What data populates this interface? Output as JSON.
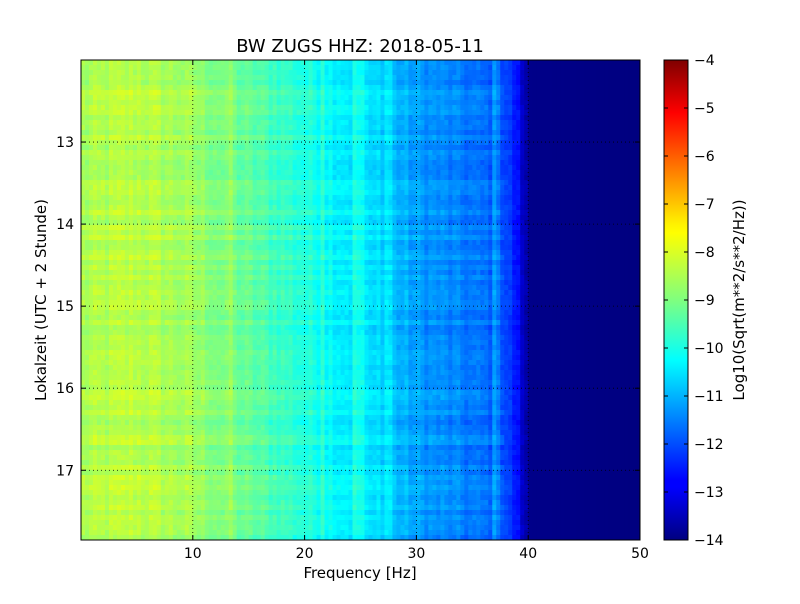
{
  "chart_data": {
    "type": "heatmap",
    "title": "BW ZUGS HHZ: 2018-05-11",
    "xlabel": "Frequency [Hz]",
    "ylabel": "Lokalzeit (UTC + 2 Stunde)",
    "xlim": [
      0,
      50
    ],
    "ylim": [
      12.0,
      17.85
    ],
    "y_inverted": true,
    "x_ticks": [
      10,
      20,
      30,
      40,
      50
    ],
    "y_ticks": [
      13,
      14,
      15,
      16,
      17
    ],
    "grid": true,
    "grid_style": "dotted",
    "colormap": "jet",
    "colorbar": {
      "label": "Log10(Sqrt(m**2/s**2/Hz))",
      "min": -14,
      "max": -4,
      "ticks": [
        -4,
        -5,
        -6,
        -7,
        -8,
        -9,
        -10,
        -11,
        -12,
        -13,
        -14
      ]
    },
    "spectrum_profile": {
      "frequency_hz": [
        0,
        5,
        10,
        15,
        20,
        25,
        30,
        35,
        37.5,
        39,
        40,
        50
      ],
      "log10_amplitude": [
        -8.6,
        -8.4,
        -8.7,
        -9.3,
        -9.9,
        -10.5,
        -11.2,
        -11.6,
        -11.8,
        -12.6,
        -13.9,
        -14
      ]
    },
    "notable_lines_hz": [
      13.5,
      21.5,
      24.5,
      25,
      26.5,
      27.5,
      37.2
    ]
  }
}
